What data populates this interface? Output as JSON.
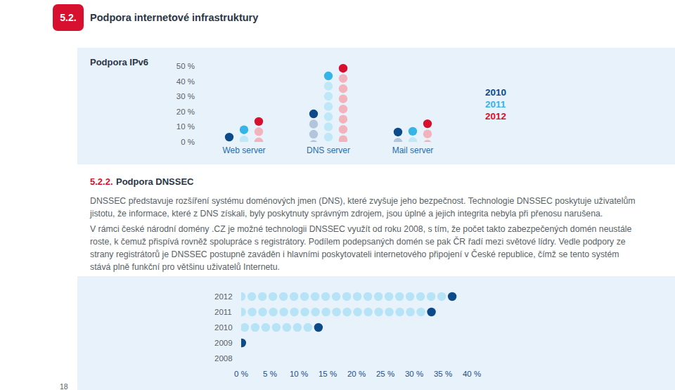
{
  "header": {
    "section_number": "5.2.",
    "title": "Podpora internetové infrastruktury"
  },
  "chart_data": [
    {
      "type": "dot",
      "title": "Podpora IPv6",
      "categories": [
        "Web server",
        "DNS server",
        "Mail server"
      ],
      "series": [
        {
          "name": "2010",
          "color": "#0d4a8a",
          "values": [
            3.2,
            18.5,
            6.5
          ]
        },
        {
          "name": "2011",
          "color": "#35b4e8",
          "values": [
            8,
            43.5,
            7
          ]
        },
        {
          "name": "2012",
          "color": "#d8102f",
          "values": [
            13.5,
            48.5,
            12
          ]
        }
      ],
      "ylim": [
        0,
        50
      ],
      "yticks": [
        {
          "value": 0,
          "label": "0 %"
        },
        {
          "value": 10,
          "label": "10 %"
        },
        {
          "value": 20,
          "label": "20 %"
        },
        {
          "value": 30,
          "label": "30 %"
        },
        {
          "value": 40,
          "label": "40 %"
        },
        {
          "value": 50,
          "label": "50 %"
        }
      ],
      "legend": "right"
    },
    {
      "type": "dot",
      "orientation": "horizontal",
      "categories": [
        "2012",
        "2011",
        "2010",
        "2009",
        "2008"
      ],
      "values": [
        36.6,
        33,
        13.4,
        0.1,
        null
      ],
      "color": "#0d4a8a",
      "xlim": [
        0,
        40
      ],
      "xticks": [
        {
          "value": 0,
          "label": "0 %"
        },
        {
          "value": 5,
          "label": "5 %"
        },
        {
          "value": 10,
          "label": "10 %"
        },
        {
          "value": 15,
          "label": "15 %"
        },
        {
          "value": 20,
          "label": "20 %"
        },
        {
          "value": 25,
          "label": "25 %"
        },
        {
          "value": 30,
          "label": "30 %"
        },
        {
          "value": 35,
          "label": "35 %"
        },
        {
          "value": 40,
          "label": "40 %"
        }
      ]
    }
  ],
  "section": {
    "number": "5.2.2.",
    "title": "Podpora DNSSEC",
    "paragraphs": [
      [
        "DNSSEC představuje rozšíření systému doménových jmen (DNS), které zvyšuje jeho bezpečnost. Technologie DNSSEC poskytuje uživatelům",
        "jistotu, že informace, které z DNS získali, byly poskytnuty správným zdrojem, jsou úplné a jejich integrita nebyla při přenosu narušena."
      ],
      [
        "V rámci české národní domény .CZ je možné technologii DNSSEC využít od roku 2008, s tím, že počet takto zabezpečených domén neustále",
        "roste, k čemuž přispívá rovněž spolupráce s registrátory. Podílem podepsaných domén se pak ČR řadí mezi světové lídry. Vedle podpory ze",
        "strany registrátorů je DNSSEC postupně zaváděn i hlavními poskytovateli internetového připojení v České republice, čímž se tento systém",
        "stává plně funkční pro většinu uživatelů Internetu."
      ]
    ]
  },
  "page_number": "18"
}
